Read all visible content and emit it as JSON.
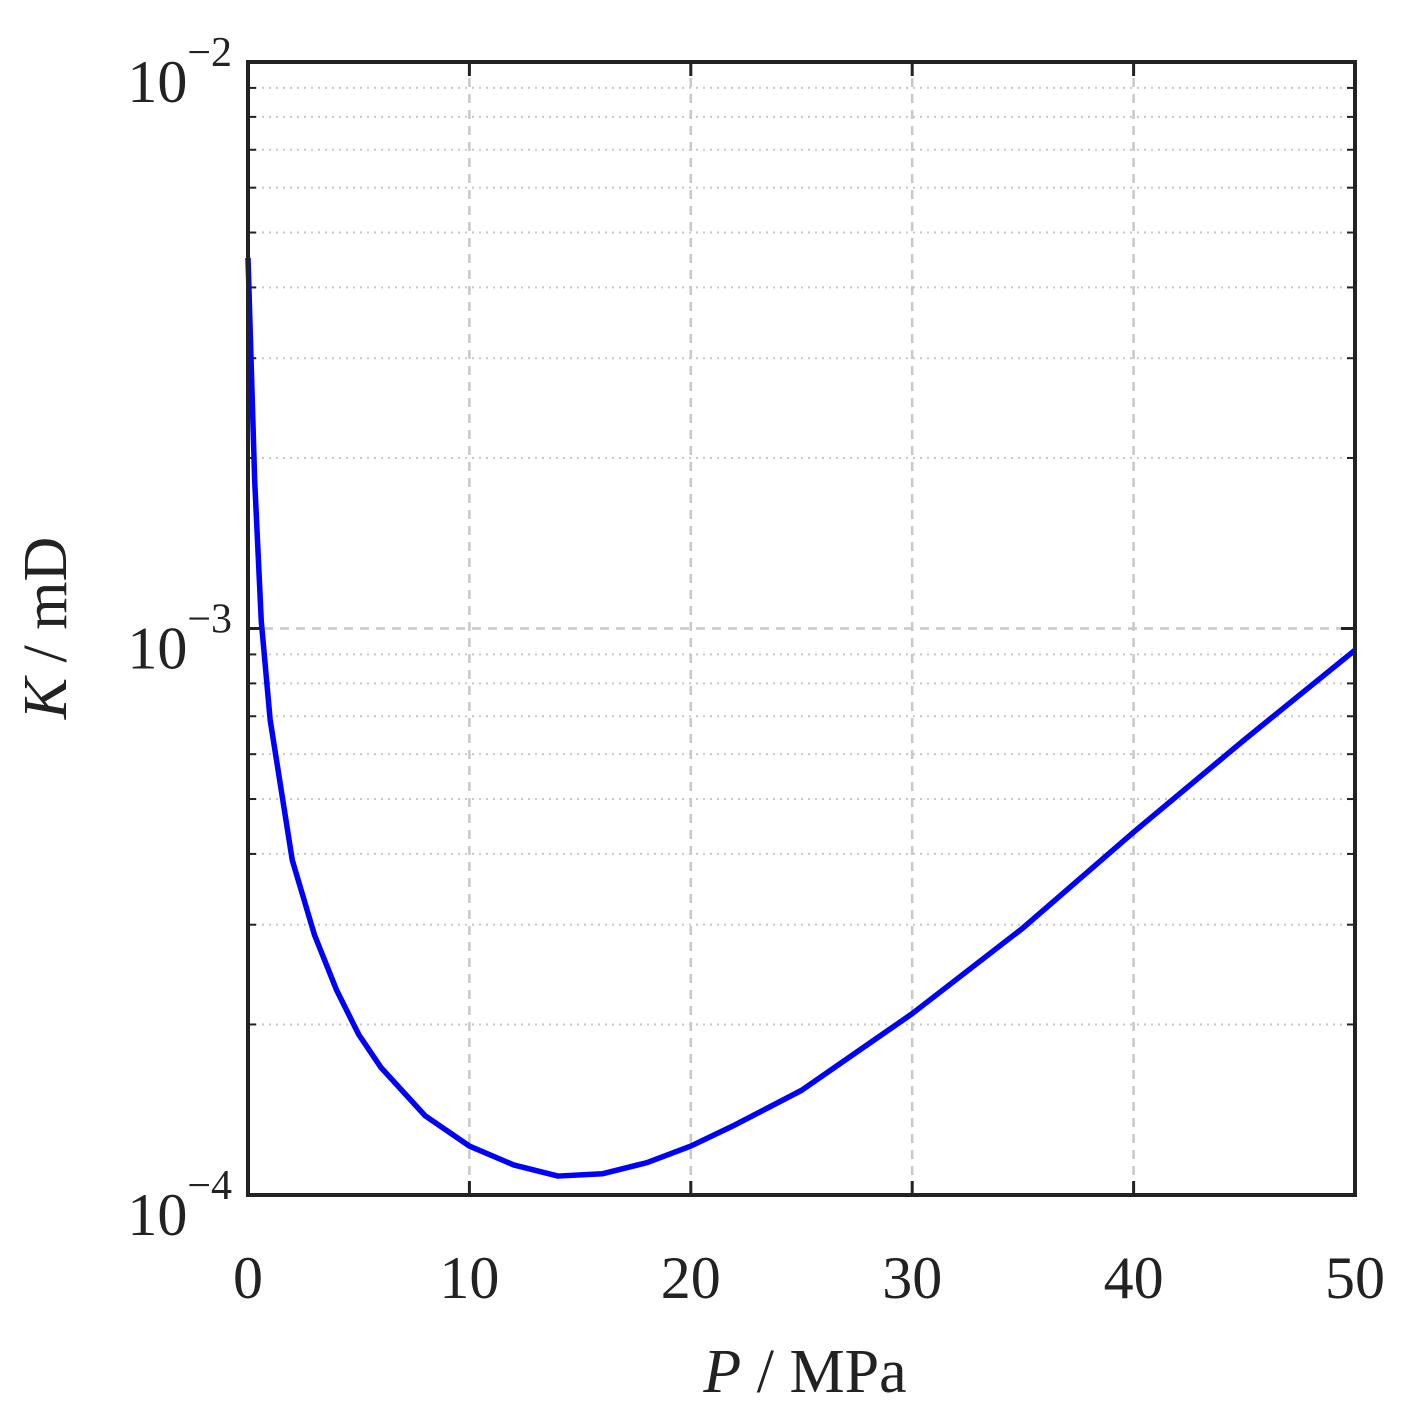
{
  "chart_data": {
    "type": "line",
    "xlabel": [
      "P",
      " / MPa"
    ],
    "ylabel": [
      "K",
      " / mD"
    ],
    "x": [
      0,
      0.3,
      0.6,
      1,
      2,
      3,
      4,
      5,
      6,
      8,
      10,
      12,
      14,
      16,
      18,
      20,
      22,
      25,
      30,
      35,
      40,
      45,
      50
    ],
    "series": [
      {
        "color": "#0000ff",
        "values": [
          0.00451,
          0.00183,
          0.00103,
          0.00069,
          0.00039,
          0.000288,
          0.00023,
          0.000192,
          0.000168,
          0.000138,
          0.000122,
          0.000113,
          0.000108,
          0.000109,
          0.000114,
          0.000122,
          0.000133,
          0.000153,
          0.000209,
          0.000296,
          0.000437,
          0.000636,
          0.000916
        ]
      }
    ],
    "xlim": [
      0,
      50
    ],
    "xticks": [
      0,
      10,
      20,
      30,
      40,
      50
    ],
    "ylim": [
      0.0001,
      0.01
    ],
    "ylog": true,
    "yticks": [
      {
        "value": 0.0001,
        "label": "10",
        "exponent": "−4"
      },
      {
        "value": 0.001,
        "label": "10",
        "exponent": "−3"
      },
      {
        "value": 0.01,
        "label": "10",
        "exponent": "−2"
      }
    ],
    "minor_yticks": [
      0.0002,
      0.0003,
      0.0004,
      0.0005,
      0.0006,
      0.0007,
      0.0008,
      0.0009,
      0.002,
      0.003,
      0.004,
      0.005,
      0.006,
      0.007,
      0.008,
      0.009
    ],
    "grid": true
  }
}
